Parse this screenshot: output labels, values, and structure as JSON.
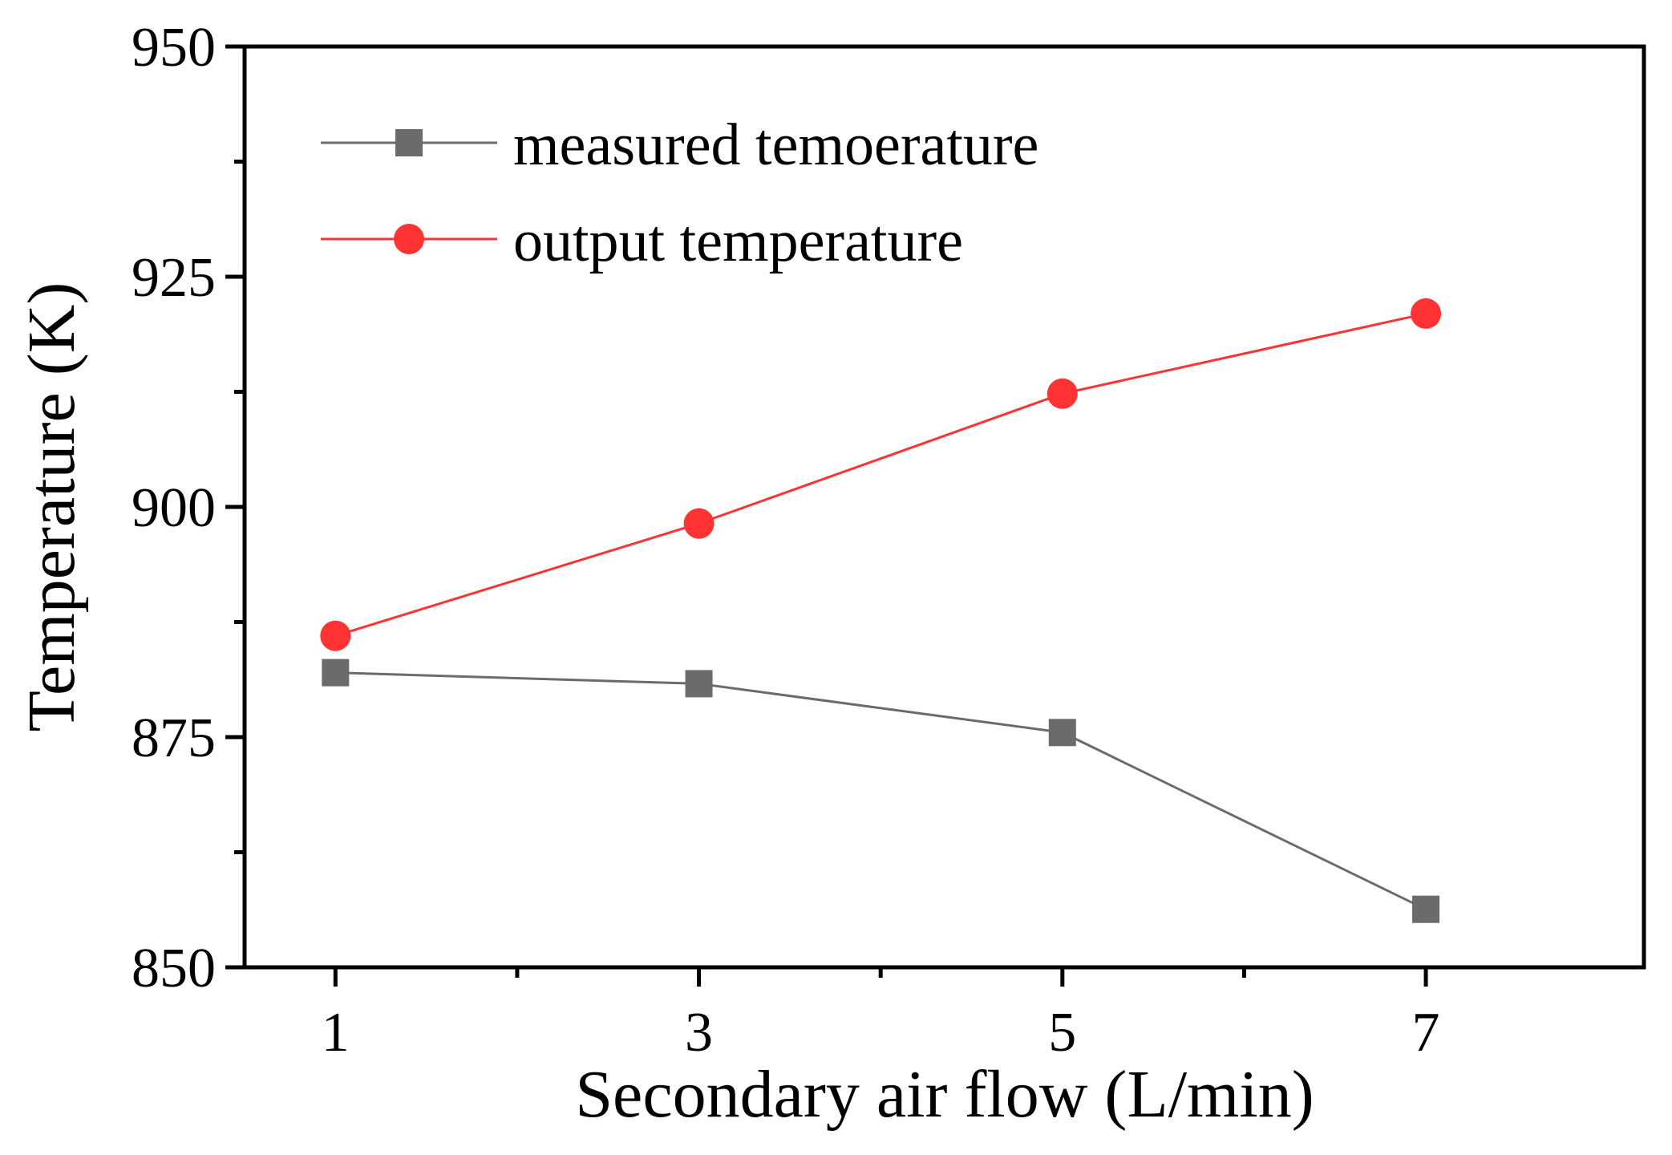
{
  "chart_data": {
    "type": "line",
    "title": "",
    "xlabel": "Secondary air flow (L/min)",
    "ylabel": "Temperature (K)",
    "x": [
      1,
      3,
      5,
      7
    ],
    "x_ticks": [
      "1",
      "3",
      "5",
      "7"
    ],
    "xlim": [
      0.5,
      8.2
    ],
    "ylim": [
      850,
      950
    ],
    "y_ticks": [
      "850",
      "875",
      "900",
      "925",
      "950"
    ],
    "grid": false,
    "legend_position": "top-left",
    "series": [
      {
        "name": "measured temoerature",
        "marker": "square",
        "color": "#6b6b6b",
        "values": [
          882,
          880.8,
          875.5,
          856.3
        ]
      },
      {
        "name": "output temperature",
        "marker": "circle",
        "color": "#ff3333",
        "values": [
          886,
          898.2,
          912.3,
          921
        ]
      }
    ]
  }
}
